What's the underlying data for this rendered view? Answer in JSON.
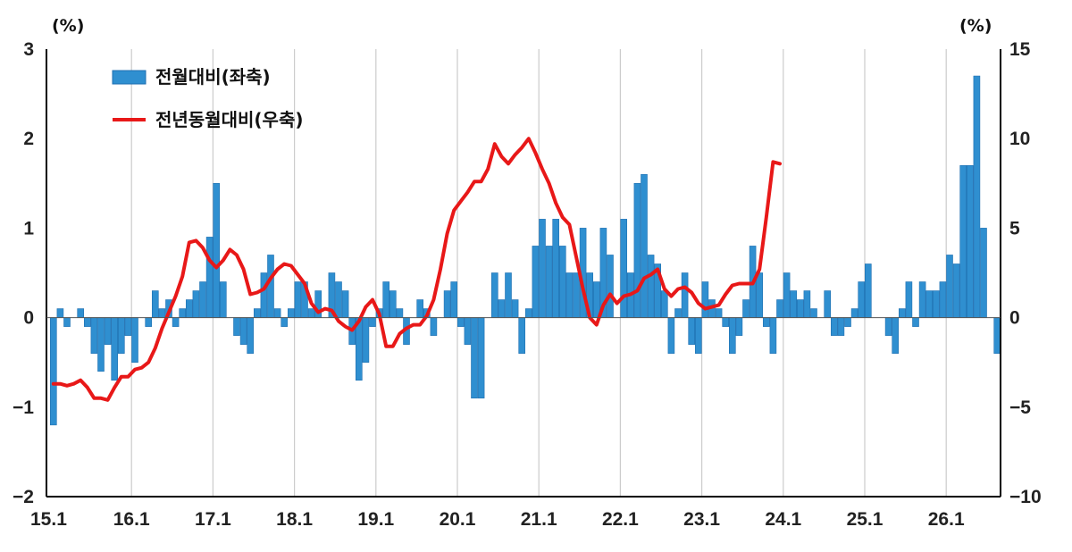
{
  "chart_data": {
    "type": "bar+line",
    "y_left": {
      "unit": "(%)",
      "ylim": [
        -2,
        3
      ],
      "ticks": [
        "3",
        "2",
        "1",
        "0",
        "−1",
        "−2"
      ]
    },
    "y_right": {
      "unit": "(%)",
      "ylim": [
        -10,
        15
      ],
      "ticks": [
        "15",
        "10",
        "5",
        "0",
        "−5",
        "−10"
      ]
    },
    "x_ticks": [
      "15.1",
      "16.1",
      "17.1",
      "18.1",
      "19.1",
      "20.1",
      "21.1",
      "22.1",
      "23.1",
      "24.1",
      "25.1",
      "26.1"
    ],
    "grid": "vertical",
    "legend": {
      "position": "top-left",
      "bar_label": "전월대비(좌축)",
      "line_label": "전년동월대비(우축)"
    },
    "colors": {
      "bar": "#2f8fd0",
      "bar_edge": "#1f6fb0",
      "line": "#e81818",
      "grid": "#cccccc",
      "axis": "#000000"
    },
    "series": [
      {
        "name": "전월대비(좌축)",
        "type": "bar",
        "axis": "left",
        "values": [
          -1.2,
          0.1,
          -0.1,
          0.0,
          0.1,
          -0.1,
          -0.4,
          -0.6,
          -0.3,
          -0.7,
          -0.4,
          -0.2,
          -0.5,
          0.0,
          -0.1,
          0.3,
          0.1,
          0.2,
          -0.1,
          0.1,
          0.2,
          0.3,
          0.4,
          0.9,
          1.5,
          0.4,
          0.0,
          -0.2,
          -0.3,
          -0.4,
          0.1,
          0.5,
          0.7,
          0.1,
          -0.1,
          0.1,
          0.4,
          0.4,
          0.1,
          0.3,
          0.0,
          0.5,
          0.4,
          0.3,
          -0.3,
          -0.7,
          -0.5,
          -0.1,
          0.1,
          0.4,
          0.3,
          0.1,
          -0.3,
          0.0,
          0.2,
          0.1,
          -0.2,
          0.0,
          0.3,
          0.4,
          -0.1,
          -0.3,
          -0.9,
          -0.9,
          0.0,
          0.5,
          0.2,
          0.5,
          0.2,
          -0.4,
          0.1,
          0.8,
          1.1,
          0.8,
          1.1,
          0.8,
          0.5,
          0.5,
          1.0,
          0.5,
          0.4,
          1.0,
          0.7,
          0.0,
          1.1,
          0.5,
          1.5,
          1.6,
          0.7,
          0.6,
          0.3,
          -0.4,
          0.1,
          0.5,
          -0.3,
          -0.4,
          0.4,
          0.2,
          0.1,
          -0.1,
          -0.4,
          -0.2,
          0.2,
          0.8,
          0.5,
          -0.1,
          -0.4,
          0.2,
          0.5,
          0.3,
          0.2,
          0.3,
          0.1,
          0.0,
          0.3,
          -0.2,
          -0.2,
          -0.1,
          0.1,
          0.4,
          0.6,
          0.0,
          0.0,
          -0.2,
          -0.4,
          0.1,
          0.4,
          -0.1,
          0.4,
          0.3,
          0.3,
          0.4,
          0.7,
          0.6,
          1.7,
          1.7,
          2.7,
          1.0,
          0.0,
          -0.4
        ]
      },
      {
        "name": "전년동월대비(우축)",
        "type": "line",
        "axis": "right",
        "values": [
          -3.7,
          -3.7,
          -3.8,
          -3.7,
          -3.5,
          -3.9,
          -4.5,
          -4.5,
          -4.6,
          -3.9,
          -3.3,
          -3.3,
          -2.9,
          -2.8,
          -2.5,
          -1.7,
          -0.6,
          0.3,
          1.2,
          2.3,
          4.2,
          4.3,
          3.9,
          3.2,
          2.8,
          3.2,
          3.8,
          3.5,
          2.7,
          1.3,
          1.4,
          1.6,
          2.2,
          2.7,
          3.0,
          2.9,
          2.4,
          1.9,
          0.8,
          0.3,
          0.5,
          0.4,
          -0.2,
          -0.5,
          -0.7,
          -0.2,
          0.6,
          1.0,
          0.2,
          -1.6,
          -1.6,
          -0.9,
          -0.6,
          -0.4,
          -0.4,
          0.1,
          1.0,
          2.7,
          4.7,
          6.0,
          6.5,
          7.0,
          7.6,
          7.6,
          8.3,
          9.7,
          9.0,
          8.6,
          9.1,
          9.5,
          10.0,
          9.2,
          8.3,
          7.5,
          6.4,
          5.6,
          5.2,
          3.4,
          1.6,
          0.0,
          -0.4,
          0.7,
          1.3,
          0.8,
          1.2,
          1.3,
          1.5,
          2.2,
          2.4,
          2.7,
          1.6,
          1.2,
          1.6,
          1.7,
          1.4,
          0.8,
          0.5,
          0.6,
          0.7,
          1.3,
          1.8,
          1.9,
          1.9,
          1.9,
          2.7,
          5.6,
          8.7,
          8.6
        ]
      }
    ]
  }
}
